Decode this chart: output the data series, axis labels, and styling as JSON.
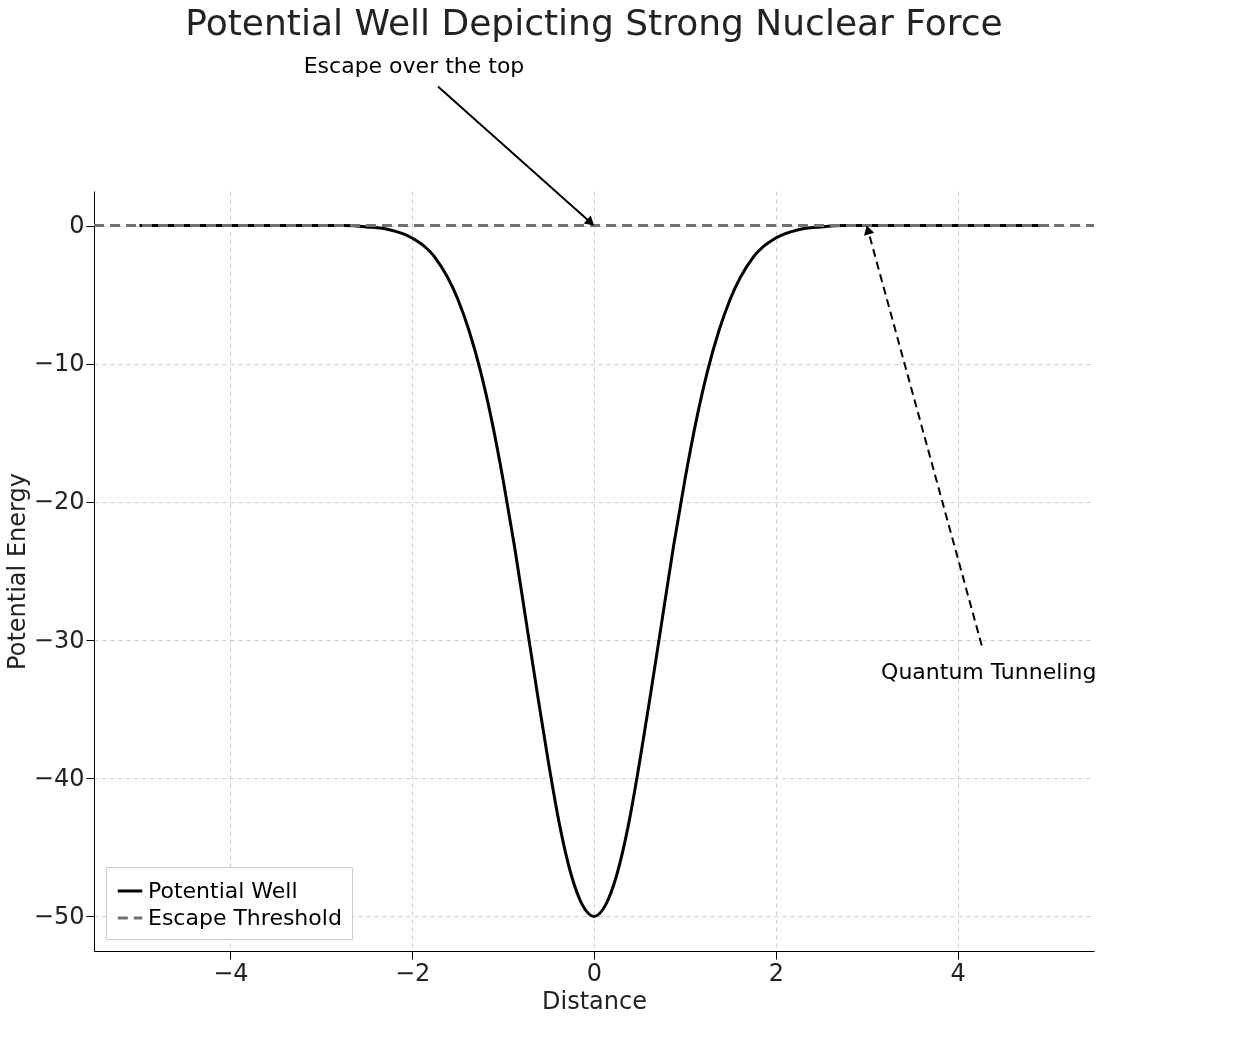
{
  "chart_data": {
    "type": "line",
    "title": "Potential Well Depicting Strong Nuclear Force",
    "xlabel": "Distance",
    "ylabel": "Potential Energy",
    "series": [
      {
        "name": "Potential Well",
        "color": "#000000",
        "line_style": "solid",
        "x": [
          -5,
          -4.5,
          -4,
          -3.5,
          -3,
          -2.75,
          -2.5,
          -2.25,
          -2,
          -1.75,
          -1.5,
          -1.375,
          -1.25,
          -1.125,
          -1,
          -0.875,
          -0.75,
          -0.625,
          -0.5,
          -0.375,
          -0.25,
          -0.125,
          0,
          0.125,
          0.25,
          0.375,
          0.5,
          0.625,
          0.75,
          0.875,
          1,
          1.125,
          1.25,
          1.375,
          1.5,
          1.75,
          2,
          2.25,
          2.5,
          2.75,
          3,
          3.5,
          4,
          4.5,
          5
        ],
        "values": [
          0,
          0,
          0,
          0,
          0,
          0,
          -0.1,
          -0.3,
          -0.9,
          -2.3,
          -5.3,
          -7.6,
          -10.5,
          -14.1,
          -18.4,
          -23.2,
          -28.5,
          -33.8,
          -38.9,
          -43.5,
          -47.0,
          -49.2,
          -50,
          -49.2,
          -47.0,
          -43.5,
          -38.9,
          -33.8,
          -28.5,
          -23.2,
          -18.4,
          -14.1,
          -10.5,
          -7.6,
          -5.3,
          -2.3,
          -0.9,
          -0.3,
          -0.1,
          0,
          0,
          0,
          0,
          0,
          0
        ]
      },
      {
        "name": "Escape Threshold",
        "color": "#707070",
        "line_style": "dashed",
        "x": [
          -5.5,
          5.5
        ],
        "values": [
          0,
          0
        ]
      }
    ],
    "annotations": [
      {
        "text": "Escape over the top",
        "x": 0,
        "y": 0
      },
      {
        "text": "Quantum Tunneling",
        "x": 3,
        "y": 0
      }
    ],
    "xlim": [
      -5.5,
      5.5
    ],
    "ylim": [
      -52.5,
      2.5
    ],
    "xticks": [
      -4,
      -2,
      0,
      2,
      4
    ],
    "yticks": [
      0,
      -10,
      -20,
      -30,
      -40,
      -50
    ],
    "grid": true,
    "legend": "bottom left"
  }
}
